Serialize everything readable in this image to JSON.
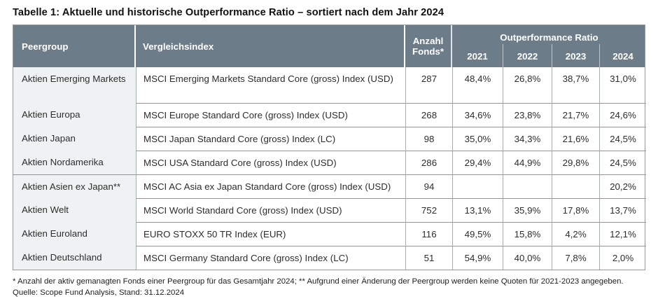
{
  "title": "Tabelle 1: Aktuelle und historische Outperformance Ratio – sortiert nach dem Jahr 2024",
  "colors": {
    "header_bg": "#6C7D89",
    "header_text": "#FFFFFF",
    "peer_col_bg": "#EFF2F3",
    "grid_line": "#99A1A5",
    "body_text": "#2D2D2D"
  },
  "table": {
    "columns": {
      "peergroup": "Peergroup",
      "vergleichsindex": "Vergleichsindex",
      "anzahl_fonds": "Anzahl Fonds*",
      "ratio_group": "Outperformance Ratio",
      "years": [
        "2021",
        "2022",
        "2023",
        "2024"
      ]
    },
    "rows": [
      {
        "peergroup": "Aktien Emerging Markets",
        "vergleichsindex": "MSCI Emerging Markets Standard Core (gross) Index (USD)",
        "anzahl_fonds": "287",
        "y2021": "48,4%",
        "y2022": "26,8%",
        "y2023": "38,7%",
        "y2024": "31,0%"
      },
      {
        "peergroup": "Aktien Europa",
        "vergleichsindex": "MSCI Europe Standard Core (gross) Index (USD)",
        "anzahl_fonds": "268",
        "y2021": "34,6%",
        "y2022": "23,8%",
        "y2023": "21,7%",
        "y2024": "24,6%"
      },
      {
        "peergroup": "Aktien Japan",
        "vergleichsindex": "MSCI Japan Standard Core (gross) Index (LC)",
        "anzahl_fonds": "98",
        "y2021": "35,0%",
        "y2022": "34,3%",
        "y2023": "21,6%",
        "y2024": "24,5%"
      },
      {
        "peergroup": "Aktien Nordamerika",
        "vergleichsindex": "MSCI USA Standard Core (gross) Index (USD)",
        "anzahl_fonds": "286",
        "y2021": "29,4%",
        "y2022": "44,9%",
        "y2023": "29,8%",
        "y2024": "24,5%"
      },
      {
        "peergroup": "Aktien Asien ex Japan**",
        "vergleichsindex": "MSCI AC Asia ex Japan Standard Core (gross) Index (USD)",
        "anzahl_fonds": "94",
        "y2021": "",
        "y2022": "",
        "y2023": "",
        "y2024": "20,2%"
      },
      {
        "peergroup": "Aktien Welt",
        "vergleichsindex": "MSCI World Standard Core (gross) Index (USD)",
        "anzahl_fonds": "752",
        "y2021": "13,1%",
        "y2022": "35,9%",
        "y2023": "17,8%",
        "y2024": "13,7%"
      },
      {
        "peergroup": "Aktien Euroland",
        "vergleichsindex": "EURO STOXX 50 TR Index (EUR)",
        "anzahl_fonds": "116",
        "y2021": "49,5%",
        "y2022": "15,8%",
        "y2023": "4,2%",
        "y2024": "12,1%"
      },
      {
        "peergroup": "Aktien Deutschland",
        "vergleichsindex": "MSCI Germany Standard Core (gross) Index (LC)",
        "anzahl_fonds": "51",
        "y2021": "54,9%",
        "y2022": "40,0%",
        "y2023": "7,8%",
        "y2024": "2,0%"
      }
    ]
  },
  "footnote": "* Anzahl der aktiv gemanagten Fonds einer Peergroup für das Gesamtjahr 2024; ** Aufgrund einer Änderung der Peergroup werden keine Quoten für 2021-2023 angegeben.",
  "source": "Quelle: Scope Fund Analysis, Stand: 31.12.2024"
}
